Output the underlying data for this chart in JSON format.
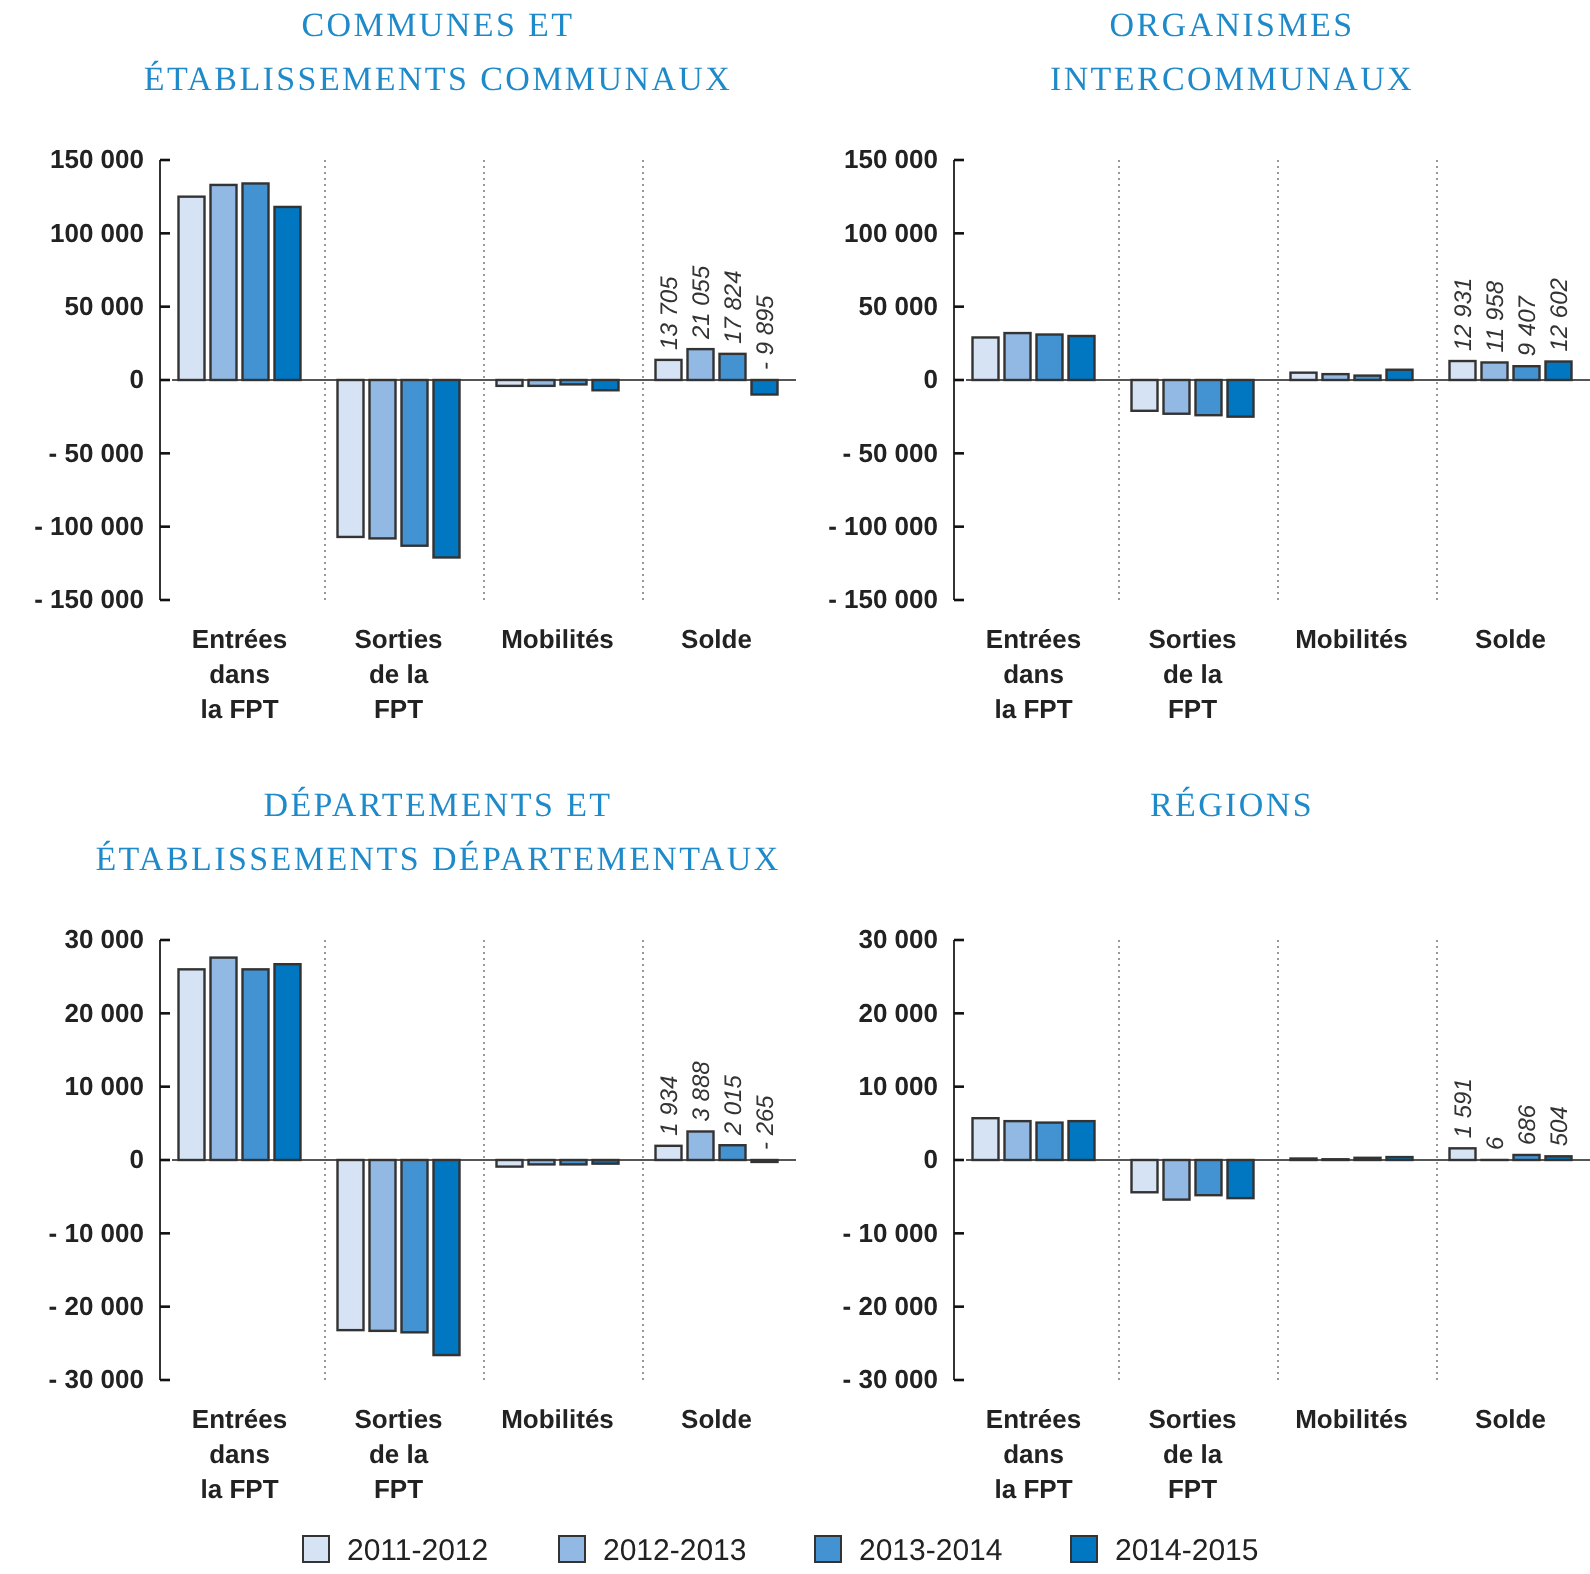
{
  "chart_data": [
    {
      "type": "bar",
      "title": "COMMUNES ET\nÉTABLISSEMENTS COMMUNAUX",
      "categories": [
        "Entrées\ndans\nla FPT",
        "Sorties\nde la\nFPT",
        "Mobilités",
        "Solde"
      ],
      "ylim": [
        -150000,
        150000
      ],
      "yticks": [
        {
          "value": 150000,
          "label": "150 000"
        },
        {
          "value": 100000,
          "label": "100 000"
        },
        {
          "value": 50000,
          "label": "50 000"
        },
        {
          "value": 0,
          "label": "0"
        },
        {
          "value": -50000,
          "label": "- 50 000"
        },
        {
          "value": -100000,
          "label": "- 100 000"
        },
        {
          "value": -150000,
          "label": "- 150 000"
        }
      ],
      "series": [
        {
          "color": "#d6e3f4",
          "values": [
            125000,
            -107000,
            -4000,
            13705
          ],
          "value_labels": [
            null,
            null,
            null,
            "13 705"
          ]
        },
        {
          "color": "#92b9e3",
          "values": [
            133000,
            -108000,
            -4000,
            21055
          ],
          "value_labels": [
            null,
            null,
            null,
            "21 055"
          ]
        },
        {
          "color": "#4393d3",
          "values": [
            134000,
            -113000,
            -3000,
            17824
          ],
          "value_labels": [
            null,
            null,
            null,
            "17 824"
          ]
        },
        {
          "color": "#0077c0",
          "values": [
            118000,
            -121000,
            -7000,
            -9895
          ],
          "value_labels": [
            null,
            null,
            null,
            "- 9 895"
          ]
        }
      ]
    },
    {
      "type": "bar",
      "title": "ORGANISMES\nINTERCOMMUNAUX",
      "categories": [
        "Entrées\ndans\nla FPT",
        "Sorties\nde la\nFPT",
        "Mobilités",
        "Solde"
      ],
      "ylim": [
        -150000,
        150000
      ],
      "yticks": [
        {
          "value": 150000,
          "label": "150 000"
        },
        {
          "value": 100000,
          "label": "100 000"
        },
        {
          "value": 50000,
          "label": "50 000"
        },
        {
          "value": 0,
          "label": "0"
        },
        {
          "value": -50000,
          "label": "- 50 000"
        },
        {
          "value": -100000,
          "label": "- 100 000"
        },
        {
          "value": -150000,
          "label": "- 150 000"
        }
      ],
      "series": [
        {
          "color": "#d6e3f4",
          "values": [
            29000,
            -21000,
            5000,
            12931
          ],
          "value_labels": [
            null,
            null,
            null,
            "12 931"
          ]
        },
        {
          "color": "#92b9e3",
          "values": [
            32000,
            -23000,
            4000,
            11958
          ],
          "value_labels": [
            null,
            null,
            null,
            "11 958"
          ]
        },
        {
          "color": "#4393d3",
          "values": [
            31000,
            -24000,
            3000,
            9407
          ],
          "value_labels": [
            null,
            null,
            null,
            "9 407"
          ]
        },
        {
          "color": "#0077c0",
          "values": [
            30000,
            -25000,
            7000,
            12602
          ],
          "value_labels": [
            null,
            null,
            null,
            "12 602"
          ]
        }
      ]
    },
    {
      "type": "bar",
      "title": "DÉPARTEMENTS ET\nÉTABLISSEMENTS DÉPARTEMENTAUX",
      "categories": [
        "Entrées\ndans\nla FPT",
        "Sorties\nde la\nFPT",
        "Mobilités",
        "Solde"
      ],
      "ylim": [
        -30000,
        30000
      ],
      "yticks": [
        {
          "value": 30000,
          "label": "30 000"
        },
        {
          "value": 20000,
          "label": "20 000"
        },
        {
          "value": 10000,
          "label": "10 000"
        },
        0,
        {
          "value": -10000,
          "label": "- 10 000"
        },
        {
          "value": -20000,
          "label": "- 20 000"
        },
        {
          "value": -30000,
          "label": "- 30 000"
        }
      ],
      "series": [
        {
          "color": "#d6e3f4",
          "values": [
            26000,
            -23200,
            -900,
            1934
          ],
          "value_labels": [
            null,
            null,
            null,
            "1 934"
          ]
        },
        {
          "color": "#92b9e3",
          "values": [
            27600,
            -23300,
            -600,
            3888
          ],
          "value_labels": [
            null,
            null,
            null,
            "3 888"
          ]
        },
        {
          "color": "#4393d3",
          "values": [
            26000,
            -23500,
            -600,
            2015
          ],
          "value_labels": [
            null,
            null,
            null,
            "2 015"
          ]
        },
        {
          "color": "#0077c0",
          "values": [
            26700,
            -26600,
            -500,
            -265
          ],
          "value_labels": [
            null,
            null,
            null,
            "- 265"
          ]
        }
      ]
    },
    {
      "type": "bar",
      "title": "RÉGIONS",
      "categories": [
        "Entrées\ndans\nla FPT",
        "Sorties\nde la\nFPT",
        "Mobilités",
        "Solde"
      ],
      "ylim": [
        -30000,
        30000
      ],
      "yticks": [
        {
          "value": 30000,
          "label": "30 000"
        },
        {
          "value": 20000,
          "label": "20 000"
        },
        {
          "value": 10000,
          "label": "10 000"
        },
        0,
        {
          "value": -10000,
          "label": "- 10 000"
        },
        {
          "value": -20000,
          "label": "- 20 000"
        },
        {
          "value": -30000,
          "label": "- 30 000"
        }
      ],
      "legend": "bottom",
      "series": [
        {
          "name": "2011-2012",
          "color": "#d6e3f4",
          "values": [
            5700,
            -4400,
            200,
            1591
          ],
          "value_labels": [
            null,
            null,
            null,
            "1 591"
          ]
        },
        {
          "name": "2012-2013",
          "color": "#92b9e3",
          "values": [
            5300,
            -5400,
            100,
            6
          ],
          "value_labels": [
            null,
            null,
            null,
            "6"
          ]
        },
        {
          "name": "2013-2014",
          "color": "#4393d3",
          "values": [
            5100,
            -4800,
            300,
            686
          ],
          "value_labels": [
            null,
            null,
            null,
            "686"
          ]
        },
        {
          "name": "2014-2015",
          "color": "#0077c0",
          "values": [
            5300,
            -5200,
            400,
            504
          ],
          "value_labels": [
            null,
            null,
            null,
            "504"
          ]
        }
      ]
    }
  ]
}
